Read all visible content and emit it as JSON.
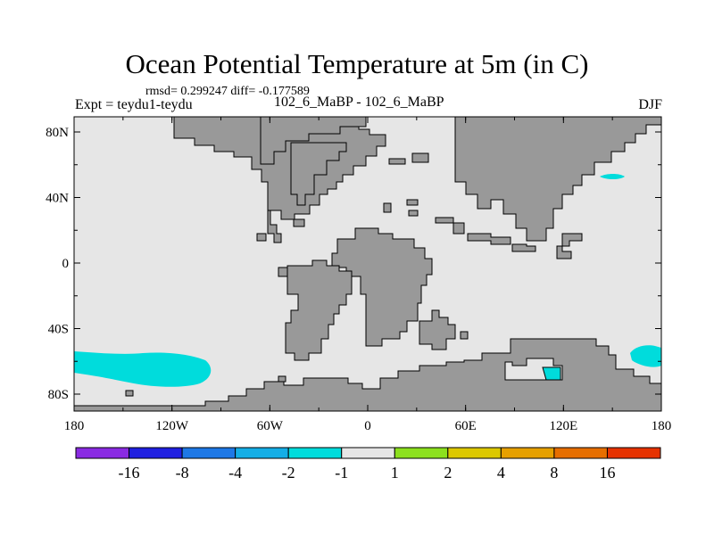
{
  "header": {
    "title": "Ocean Potential Temperature at 5m (in C)",
    "stats": "rmsd= 0.299247 diff= -0.177589",
    "experiment": "Expt = teydu1-teydu",
    "period": "102_6_MaBP - 102_6_MaBP",
    "season": "DJF"
  },
  "map": {
    "ocean_color": "#e6e6e6",
    "land_color": "#999999",
    "anomaly_color": "#00dcdc",
    "y_ticks": [
      {
        "label": "80N",
        "lat": 80
      },
      {
        "label": "40N",
        "lat": 40
      },
      {
        "label": "0",
        "lat": 0
      },
      {
        "label": "40S",
        "lat": -40
      },
      {
        "label": "80S",
        "lat": -80
      }
    ],
    "x_ticks": [
      {
        "label": "180",
        "lon": -180
      },
      {
        "label": "120W",
        "lon": -120
      },
      {
        "label": "60W",
        "lon": -60
      },
      {
        "label": "0",
        "lon": 0
      },
      {
        "label": "60E",
        "lon": 60
      },
      {
        "label": "120E",
        "lon": 120
      },
      {
        "label": "180",
        "lon": 180
      }
    ]
  },
  "colorbar": {
    "colors": [
      "#8a2be2",
      "#2020e0",
      "#1e78e6",
      "#14aee6",
      "#00dcdc",
      "#e6e6e6",
      "#8ce01e",
      "#dcc800",
      "#e6a000",
      "#e66e00",
      "#e63200"
    ],
    "labels": [
      "-16",
      "-8",
      "-4",
      "-2",
      "-1",
      "1",
      "2",
      "4",
      "8",
      "16"
    ]
  }
}
